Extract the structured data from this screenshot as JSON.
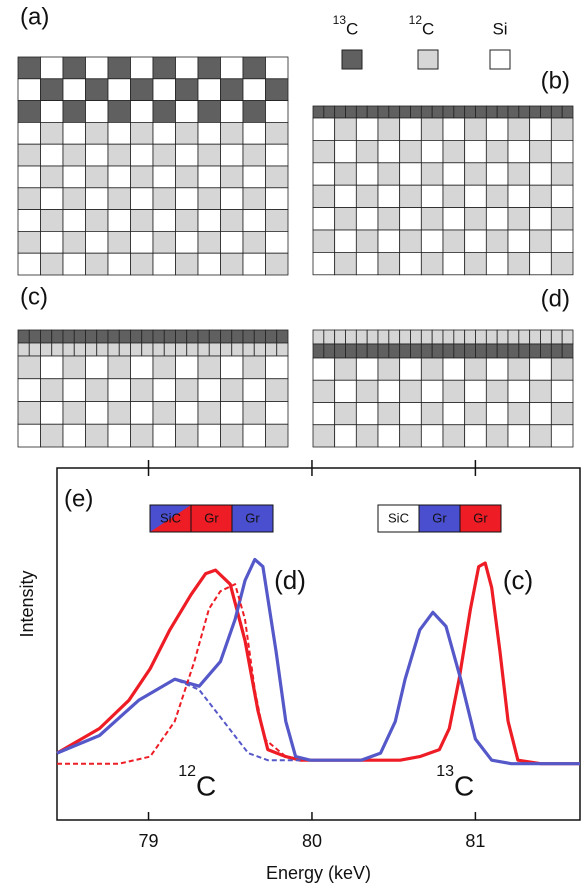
{
  "panels": [
    "(a)",
    "(b)",
    "(c)",
    "(d)"
  ],
  "legend": [
    {
      "mass": "13",
      "element": "C"
    },
    {
      "mass": "12",
      "element": "C"
    },
    {
      "element": "Si"
    }
  ],
  "chart_data": {
    "type": "line",
    "panel_label": "(e)",
    "x_label": "Energy (keV)",
    "y_label": "Intensity",
    "xlim": [
      78.44,
      81.64
    ],
    "xticks": [
      79,
      80,
      81
    ],
    "ylim": [
      0,
      1
    ],
    "insets": [
      {
        "layers": [
          "SiC",
          "Gr",
          "Gr"
        ]
      },
      {
        "layers": [
          "SiC",
          "Gr",
          "Gr"
        ]
      }
    ],
    "annotations": [
      {
        "text": "(d)",
        "color": "#5558c8"
      },
      {
        "text": "(c)",
        "color": "#ee1c25"
      }
    ],
    "peak_labels": [
      {
        "mass": "12",
        "element": "C"
      },
      {
        "mass": "13",
        "element": "C"
      }
    ],
    "series": [
      {
        "color": "#ee1c25",
        "dashed": false,
        "x": [
          78.44,
          78.7,
          78.88,
          79.01,
          79.13,
          79.26,
          79.35,
          79.41,
          79.5,
          79.59,
          79.67,
          79.73,
          79.84,
          79.93,
          80.54,
          80.66,
          80.78,
          80.84,
          80.9,
          80.97,
          81.02,
          81.06,
          81.1,
          81.15,
          81.2,
          81.26,
          81.4,
          81.64
        ],
        "values": [
          0.19,
          0.26,
          0.34,
          0.43,
          0.54,
          0.64,
          0.7,
          0.71,
          0.67,
          0.51,
          0.31,
          0.2,
          0.18,
          0.17,
          0.17,
          0.18,
          0.2,
          0.26,
          0.4,
          0.6,
          0.72,
          0.73,
          0.66,
          0.48,
          0.28,
          0.17,
          0.16,
          0.16
        ]
      },
      {
        "color": "#5558c8",
        "dashed": false,
        "x": [
          78.44,
          78.7,
          78.94,
          79.16,
          79.31,
          79.44,
          79.53,
          79.59,
          79.65,
          79.7,
          79.78,
          79.84,
          79.9,
          79.99,
          80.3,
          80.42,
          80.51,
          80.57,
          80.66,
          80.74,
          80.82,
          80.91,
          81.0,
          81.1,
          81.22,
          81.64
        ],
        "values": [
          0.19,
          0.24,
          0.34,
          0.4,
          0.38,
          0.45,
          0.57,
          0.68,
          0.74,
          0.72,
          0.48,
          0.28,
          0.18,
          0.17,
          0.17,
          0.19,
          0.28,
          0.4,
          0.54,
          0.59,
          0.55,
          0.4,
          0.23,
          0.17,
          0.16,
          0.16
        ]
      },
      {
        "color": "#ee1c25",
        "dashed": true,
        "x": [
          78.44,
          78.82,
          79.01,
          79.16,
          79.28,
          79.37,
          79.44,
          79.53,
          79.59,
          79.65,
          79.71,
          79.84,
          79.93
        ],
        "values": [
          0.16,
          0.16,
          0.18,
          0.28,
          0.45,
          0.6,
          0.65,
          0.67,
          0.57,
          0.37,
          0.23,
          0.18,
          0.17
        ]
      },
      {
        "color": "#5558c8",
        "dashed": true,
        "x": [
          78.44,
          78.7,
          78.94,
          79.16,
          79.31,
          79.46,
          79.61,
          79.73,
          79.93
        ],
        "values": [
          0.19,
          0.24,
          0.34,
          0.4,
          0.37,
          0.28,
          0.19,
          0.17,
          0.17
        ]
      }
    ]
  }
}
